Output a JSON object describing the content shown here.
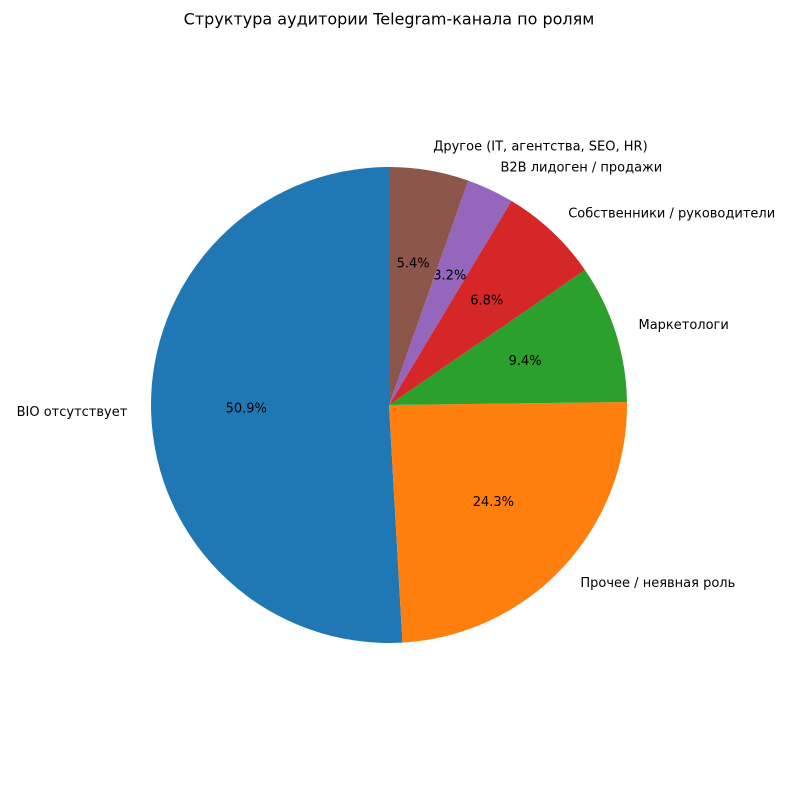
{
  "chart_data": {
    "type": "pie",
    "title": "Структура аудитории Telegram-канала по ролям",
    "categories": [
      "BIO отсутствует",
      "Прочее / неявная роль",
      "Маркетологи",
      "Собственники / руководители",
      "B2B лидоген / продажи",
      "Другое (IT, агентства, SEO, HR)"
    ],
    "values": [
      50.9,
      24.3,
      9.4,
      6.8,
      3.2,
      5.4
    ],
    "value_labels": [
      "50.9%",
      "24.3%",
      "9.4%",
      "6.8%",
      "3.2%",
      "5.4%"
    ],
    "colors": [
      "#1f77b4",
      "#ff7f0e",
      "#2ca02c",
      "#d62728",
      "#9467bd",
      "#8c564b"
    ],
    "start_angle": 90
  }
}
